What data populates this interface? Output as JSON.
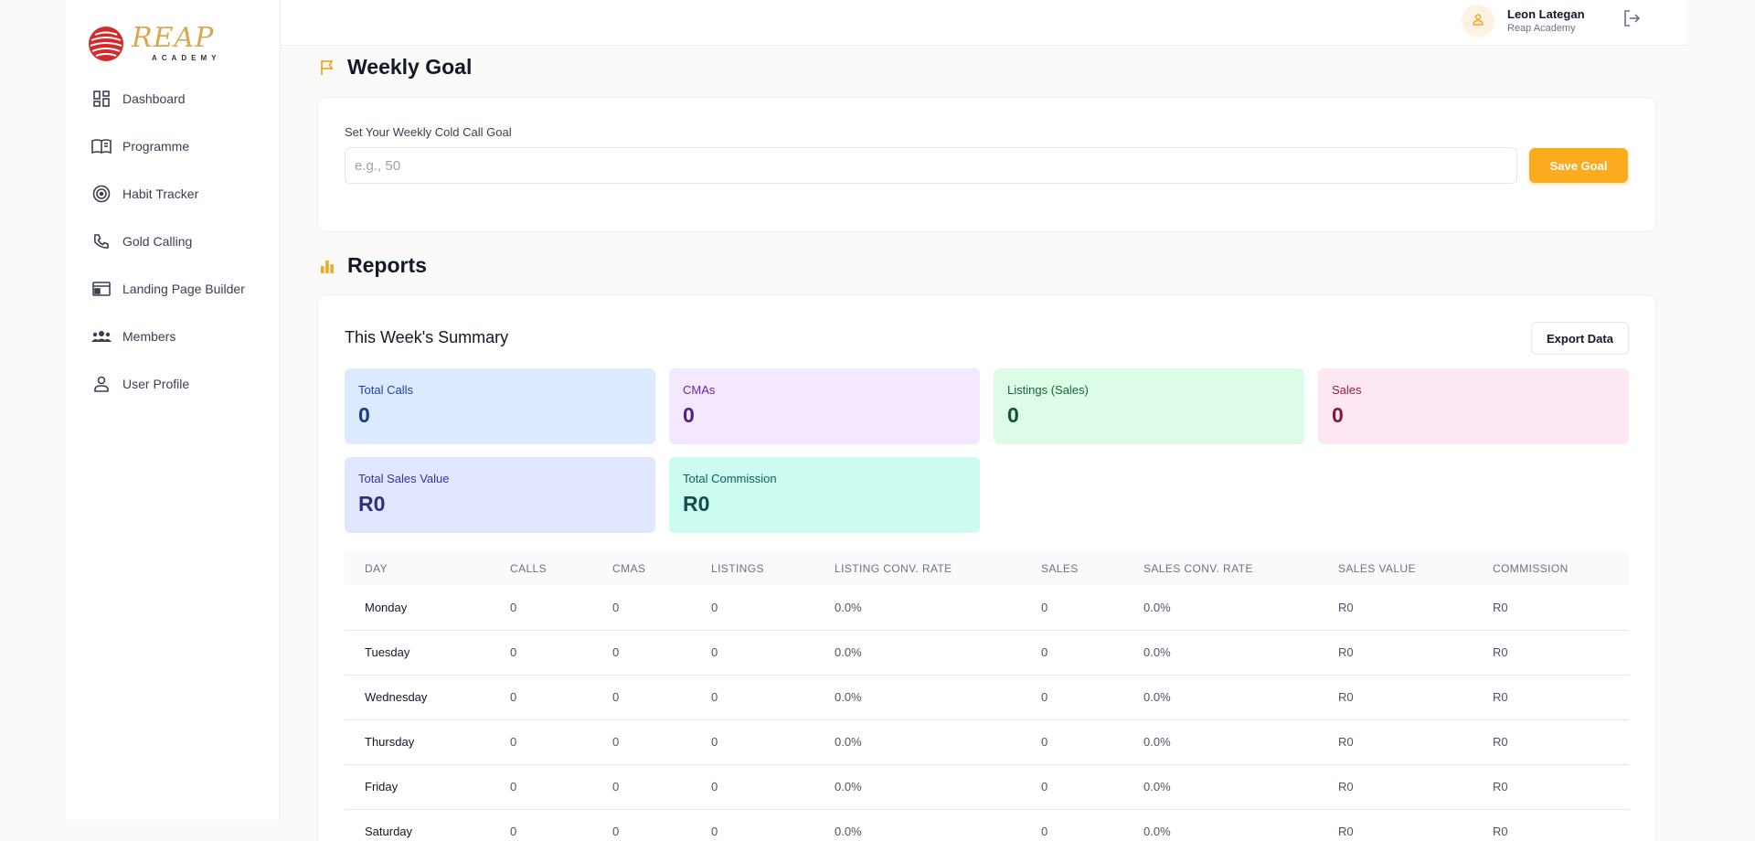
{
  "brand": {
    "logo_text": "REAP",
    "logo_sub": "ACADEMY"
  },
  "sidebar": {
    "items": [
      {
        "label": "Dashboard",
        "icon": "dashboard-icon"
      },
      {
        "label": "Programme",
        "icon": "book-icon"
      },
      {
        "label": "Habit Tracker",
        "icon": "target-icon"
      },
      {
        "label": "Gold Calling",
        "icon": "phone-icon"
      },
      {
        "label": "Landing Page Builder",
        "icon": "web-page-icon"
      },
      {
        "label": "Members",
        "icon": "group-icon"
      },
      {
        "label": "User Profile",
        "icon": "person-icon"
      }
    ]
  },
  "user": {
    "name": "Leon Lategan",
    "org": "Reap Academy"
  },
  "weekly_goal": {
    "title": "Weekly Goal",
    "label": "Set Your Weekly Cold Call Goal",
    "value": "",
    "placeholder": "e.g., 50",
    "save_label": "Save Goal"
  },
  "reports": {
    "title": "Reports",
    "summary_title": "This Week's Summary",
    "export_label": "Export Data",
    "stats": [
      {
        "label": "Total Calls",
        "value": "0"
      },
      {
        "label": "CMAs",
        "value": "0"
      },
      {
        "label": "Listings (Sales)",
        "value": "0"
      },
      {
        "label": "Sales",
        "value": "0"
      },
      {
        "label": "Total Sales Value",
        "value": "R0"
      },
      {
        "label": "Total Commission",
        "value": "R0"
      }
    ],
    "columns": [
      "DAY",
      "CALLS",
      "CMAS",
      "LISTINGS",
      "LISTING CONV. RATE",
      "SALES",
      "SALES CONV. RATE",
      "SALES VALUE",
      "COMMISSION"
    ],
    "rows": [
      [
        "Monday",
        "0",
        "0",
        "0",
        "0.0%",
        "0",
        "0.0%",
        "R0",
        "R0"
      ],
      [
        "Tuesday",
        "0",
        "0",
        "0",
        "0.0%",
        "0",
        "0.0%",
        "R0",
        "R0"
      ],
      [
        "Wednesday",
        "0",
        "0",
        "0",
        "0.0%",
        "0",
        "0.0%",
        "R0",
        "R0"
      ],
      [
        "Thursday",
        "0",
        "0",
        "0",
        "0.0%",
        "0",
        "0.0%",
        "R0",
        "R0"
      ],
      [
        "Friday",
        "0",
        "0",
        "0",
        "0.0%",
        "0",
        "0.0%",
        "R0",
        "R0"
      ],
      [
        "Saturday",
        "0",
        "0",
        "0",
        "0.0%",
        "0",
        "0.0%",
        "R0",
        "R0"
      ]
    ]
  },
  "colors": {
    "accent": "#fbab1e",
    "stat_bg": [
      "#dbeafe",
      "#f3e8ff",
      "#dcfce7",
      "#fce7f3",
      "#e0e7ff",
      "#ccfbf1"
    ],
    "stat_label": [
      "#1e40af",
      "#6b21a8",
      "#166534",
      "#9d174d",
      "#3730a3",
      "#115e59"
    ],
    "stat_value": [
      "#1e3a8a",
      "#581c87",
      "#14532d",
      "#831843",
      "#312e81",
      "#134e4a"
    ]
  }
}
